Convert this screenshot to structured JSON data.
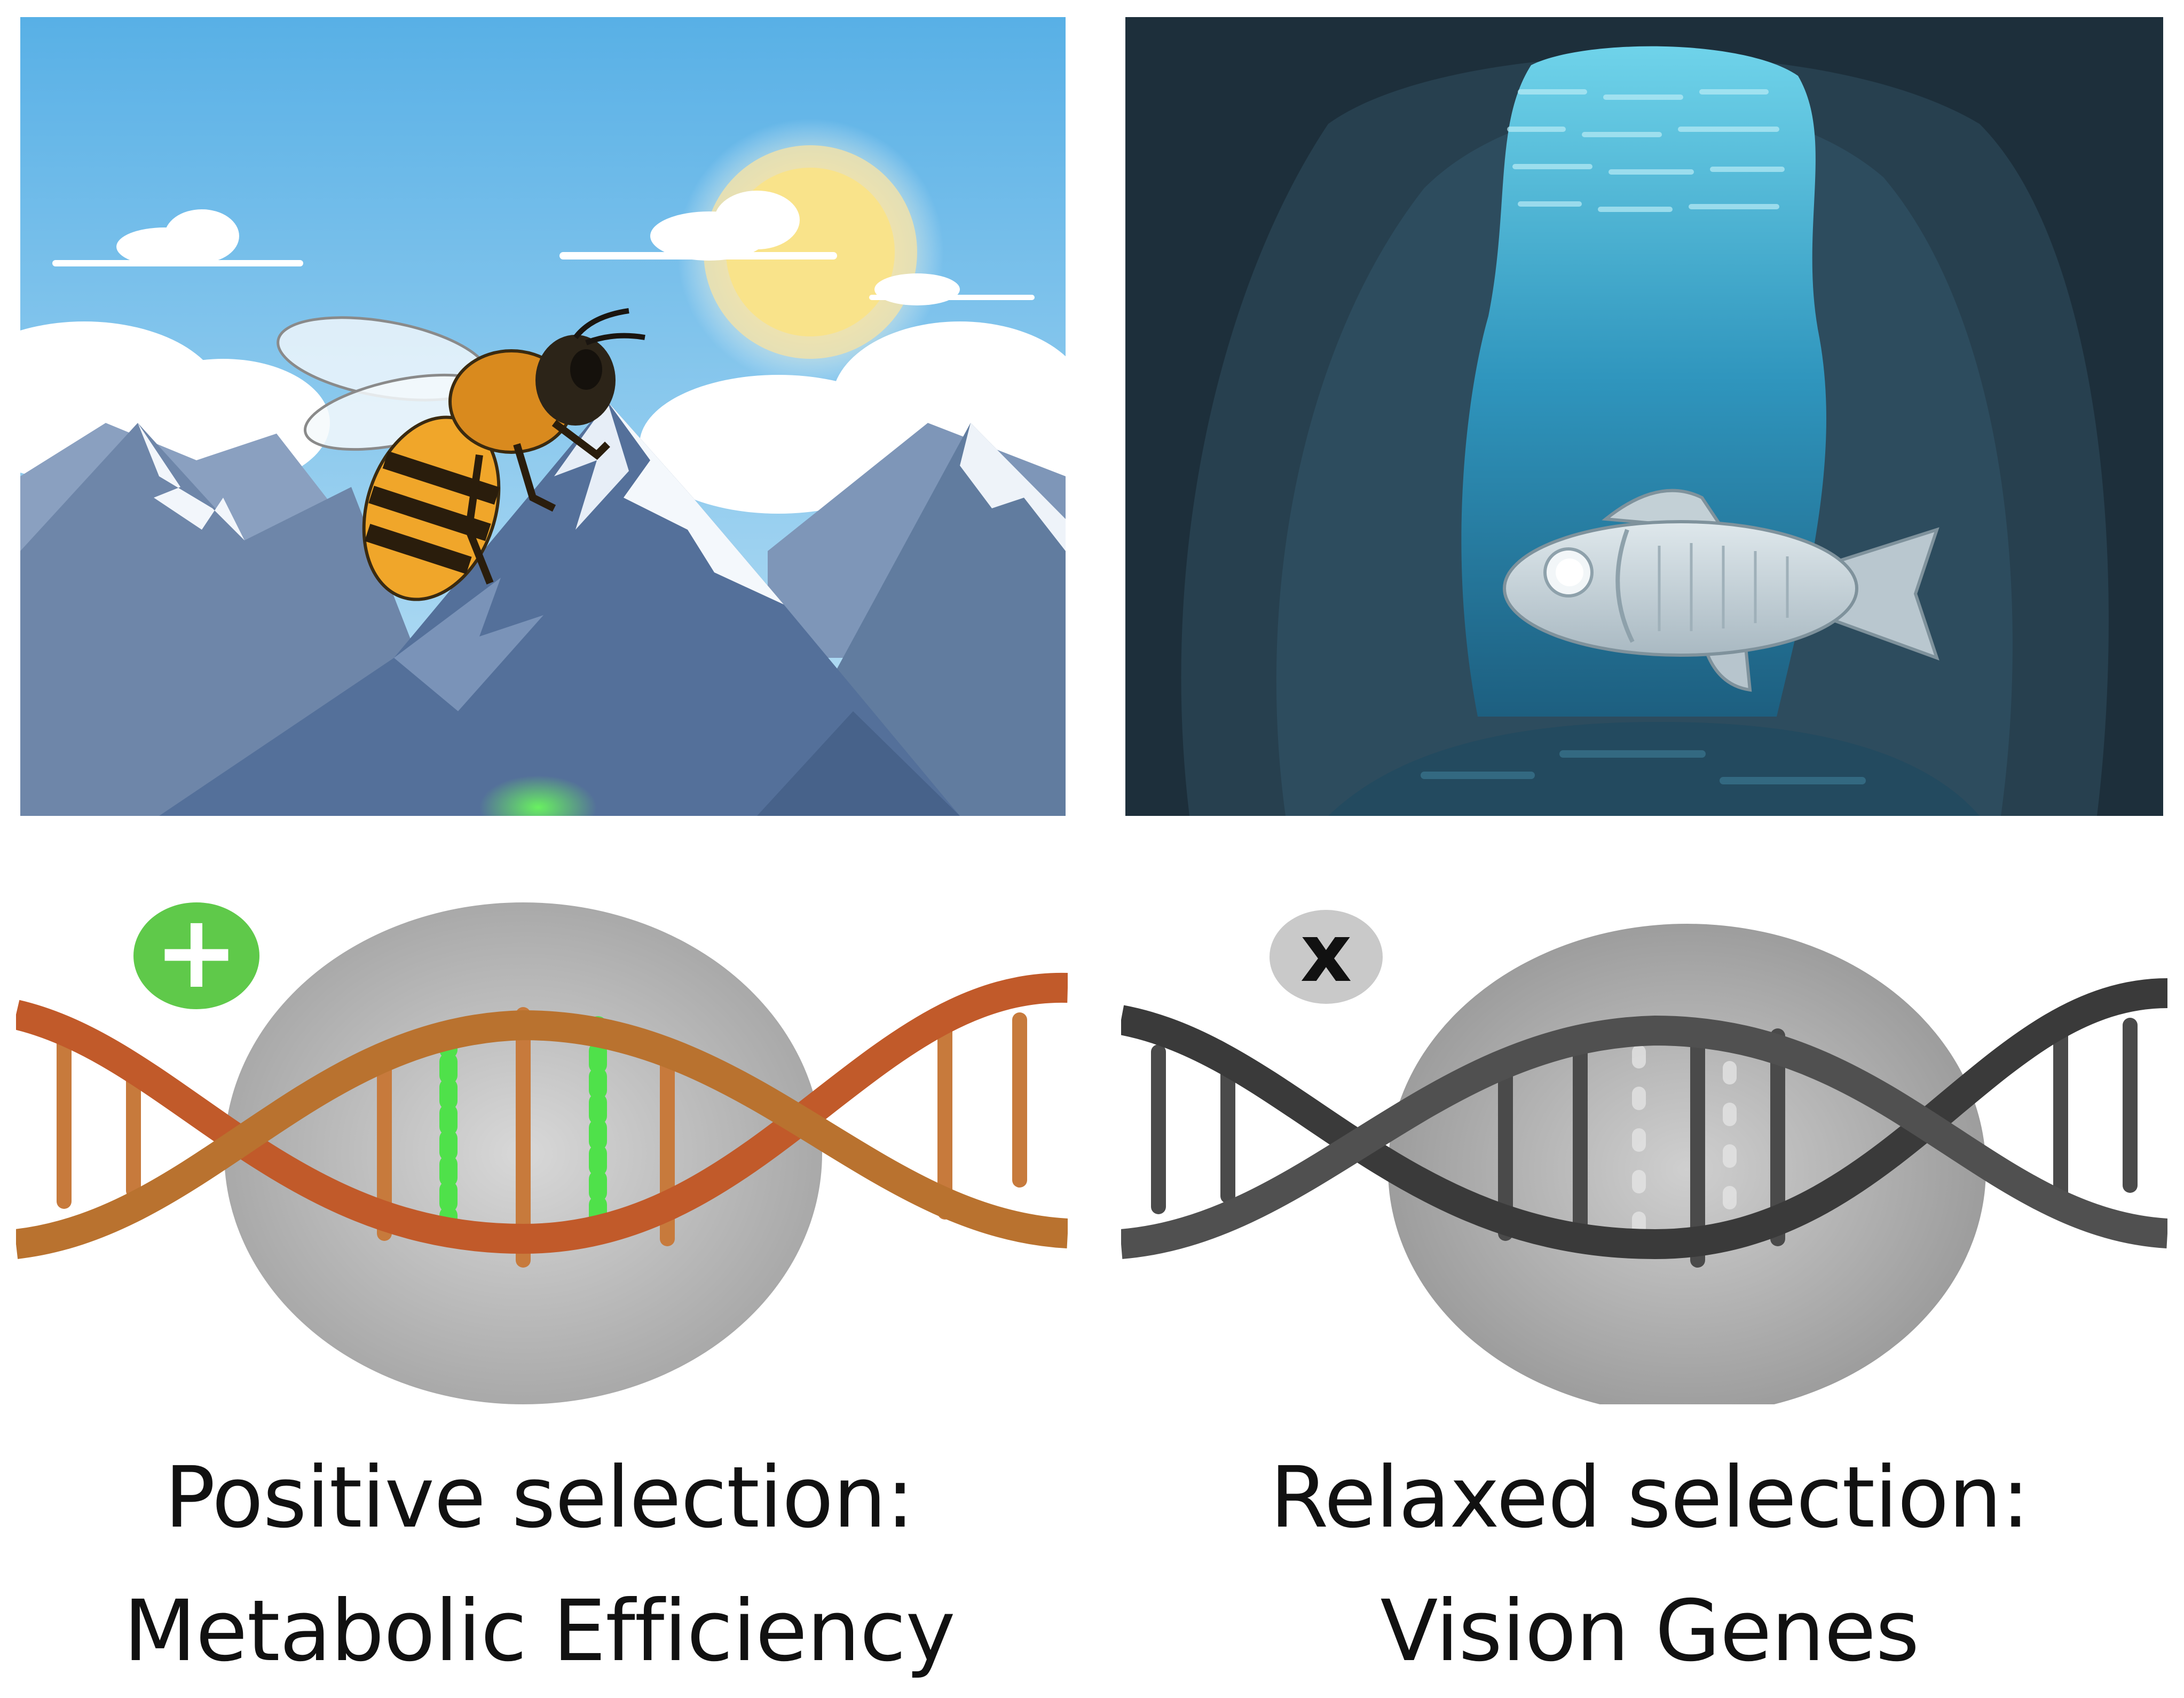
{
  "panels": {
    "left": {
      "scene": "mountain-bee-scene",
      "badge_icon": "plus-icon",
      "badge_glyph": "+",
      "caption_line1": "Positive selection:",
      "caption_line2": "Metabolic Efficiency",
      "colors": {
        "sky": "#5fb3e6",
        "mountain": "#6f86a8",
        "dna": "#c8643a",
        "highlight": "#39e04a",
        "badge": "#5fc94a"
      }
    },
    "right": {
      "scene": "cave-fish-scene",
      "badge_icon": "x-icon",
      "badge_glyph": "x",
      "caption_line1": "Relaxed selection:",
      "caption_line2": "Vision Genes",
      "colors": {
        "cave": "#243a47",
        "water": "#3a9fc2",
        "dna": "#3c3c3c",
        "badge": "#c9c9c9"
      }
    }
  }
}
